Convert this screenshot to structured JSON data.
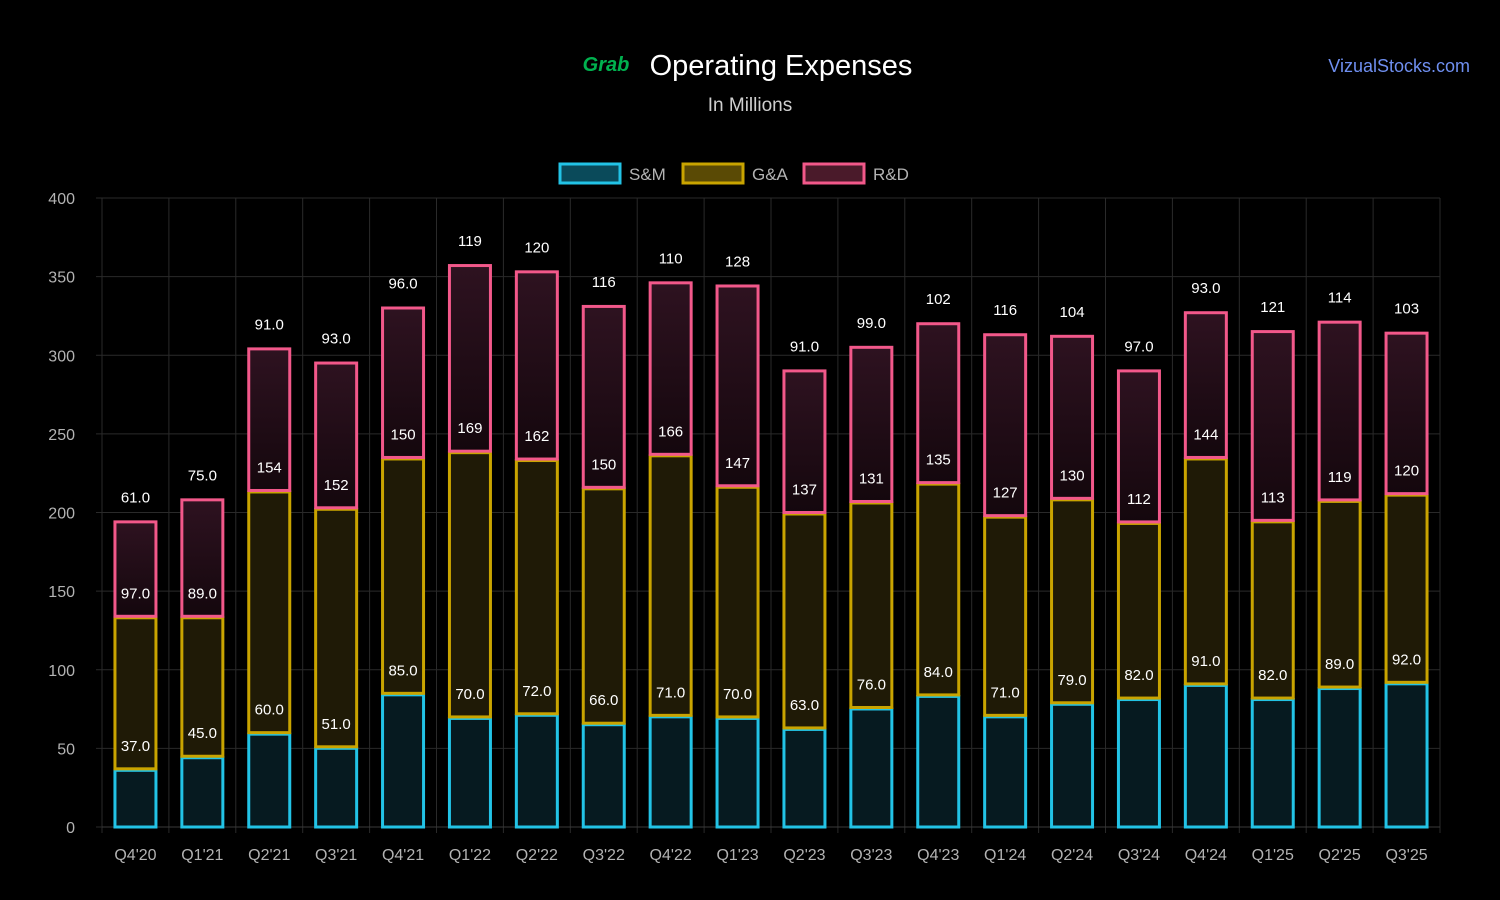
{
  "header": {
    "logo_text": "Grab",
    "title": "Operating Expenses",
    "subtitle": "In Millions",
    "watermark": "VizualStocks.com"
  },
  "colors": {
    "background": "#000000",
    "grid": "#2a2a2a",
    "axis_text": "#b3b3b3",
    "label_text": "#ffffff",
    "title_text": "#ffffff",
    "subtitle_text": "#cfcfcf",
    "watermark": "#6f8ff0",
    "logo": "#00b14f"
  },
  "chart_data": {
    "type": "bar",
    "stacked": true,
    "categories": [
      "Q4'20",
      "Q1'21",
      "Q2'21",
      "Q3'21",
      "Q4'21",
      "Q1'22",
      "Q2'22",
      "Q3'22",
      "Q4'22",
      "Q1'23",
      "Q2'23",
      "Q3'23",
      "Q4'23",
      "Q1'24",
      "Q2'24",
      "Q3'24",
      "Q4'24",
      "Q1'25",
      "Q2'25",
      "Q3'25"
    ],
    "series": [
      {
        "name": "S&M",
        "values": [
          37,
          45,
          60,
          51,
          85,
          70,
          72,
          66,
          71,
          70,
          63,
          76,
          84,
          71,
          79,
          82,
          91,
          82,
          89,
          92
        ],
        "labels": [
          "37.0",
          "45.0",
          "60.0",
          "51.0",
          "85.0",
          "70.0",
          "72.0",
          "66.0",
          "71.0",
          "70.0",
          "63.0",
          "76.0",
          "84.0",
          "71.0",
          "79.0",
          "82.0",
          "91.0",
          "82.0",
          "89.0",
          "92.0"
        ],
        "stroke": "#22c3e6",
        "fill": "#061a20"
      },
      {
        "name": "G&A",
        "values": [
          97,
          89,
          154,
          152,
          150,
          169,
          162,
          150,
          166,
          147,
          137,
          131,
          135,
          127,
          130,
          112,
          144,
          113,
          119,
          120
        ],
        "labels": [
          "97.0",
          "89.0",
          "154",
          "152",
          "150",
          "169",
          "162",
          "150",
          "166",
          "147",
          "137",
          "131",
          "135",
          "127",
          "130",
          "112",
          "144",
          "113",
          "119",
          "120"
        ],
        "stroke": "#c9a400",
        "fill": "#1f1a06"
      },
      {
        "name": "R&D",
        "values": [
          61,
          75,
          91,
          93,
          96,
          119,
          120,
          116,
          110,
          128,
          91,
          99,
          102,
          116,
          104,
          97,
          93,
          121,
          114,
          103
        ],
        "labels": [
          "61.0",
          "75.0",
          "91.0",
          "93.0",
          "96.0",
          "119",
          "120",
          "116",
          "110",
          "128",
          "91.0",
          "99.0",
          "102",
          "116",
          "104",
          "97.0",
          "93.0",
          "121",
          "114",
          "103"
        ],
        "stroke": "#f2588a",
        "fill": "#1e0b13"
      }
    ],
    "legend_fills": [
      "#0a4a5a",
      "#5a4a05",
      "#4a1a2a"
    ],
    "ylim": [
      0,
      400
    ],
    "yticks": [
      "0",
      "50",
      "100",
      "150",
      "200",
      "250",
      "300",
      "350",
      "400"
    ],
    "grid": true,
    "legend_position": "top-center"
  }
}
